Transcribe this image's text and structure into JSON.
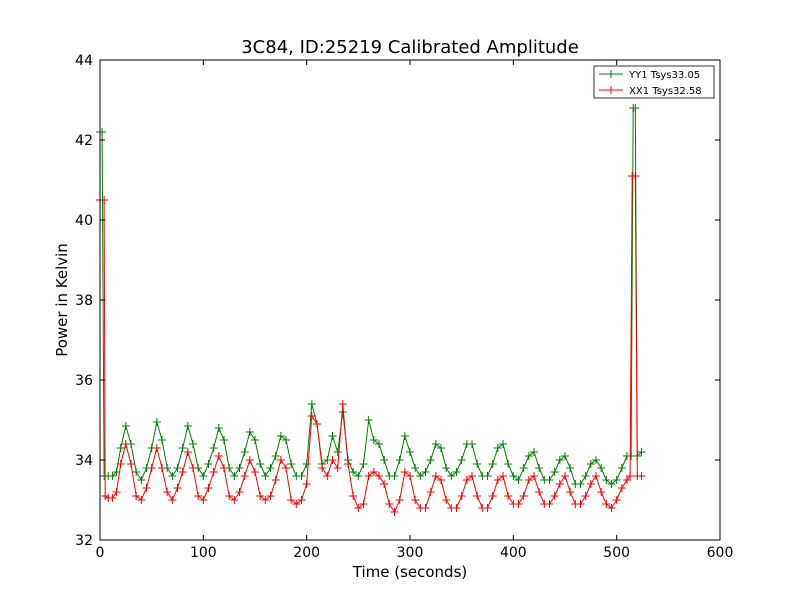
{
  "chart_data": {
    "type": "line",
    "title": "3C84, ID:25219 Calibrated Amplitude",
    "xlabel": "Time (seconds)",
    "ylabel": "Power in Kelvin",
    "xlim": [
      0,
      600
    ],
    "ylim": [
      32,
      44
    ],
    "xticks": [
      0,
      100,
      200,
      300,
      400,
      500,
      600
    ],
    "yticks": [
      32,
      34,
      36,
      38,
      40,
      42,
      44
    ],
    "grid": false,
    "legend_position": "top-right",
    "marker": "+",
    "series": [
      {
        "name": "YY1 Tsys33.05",
        "color": "#008000",
        "points": [
          [
            0,
            42.2
          ],
          [
            2,
            42.2
          ],
          [
            4,
            33.6
          ],
          [
            8,
            33.6
          ],
          [
            12,
            33.6
          ],
          [
            16,
            33.7
          ],
          [
            20,
            34.3
          ],
          [
            25,
            34.85
          ],
          [
            30,
            34.4
          ],
          [
            35,
            33.7
          ],
          [
            40,
            33.5
          ],
          [
            45,
            33.8
          ],
          [
            50,
            34.3
          ],
          [
            55,
            34.95
          ],
          [
            60,
            34.5
          ],
          [
            65,
            33.8
          ],
          [
            70,
            33.6
          ],
          [
            75,
            33.8
          ],
          [
            80,
            34.3
          ],
          [
            85,
            34.85
          ],
          [
            90,
            34.4
          ],
          [
            95,
            33.8
          ],
          [
            100,
            33.6
          ],
          [
            105,
            33.9
          ],
          [
            110,
            34.3
          ],
          [
            115,
            34.8
          ],
          [
            120,
            34.5
          ],
          [
            125,
            33.8
          ],
          [
            130,
            33.6
          ],
          [
            135,
            33.8
          ],
          [
            140,
            34.2
          ],
          [
            145,
            34.7
          ],
          [
            150,
            34.5
          ],
          [
            155,
            33.9
          ],
          [
            160,
            33.6
          ],
          [
            165,
            33.8
          ],
          [
            170,
            34.1
          ],
          [
            175,
            34.6
          ],
          [
            180,
            34.5
          ],
          [
            185,
            33.9
          ],
          [
            190,
            33.6
          ],
          [
            195,
            33.6
          ],
          [
            200,
            33.9
          ],
          [
            205,
            35.4
          ],
          [
            210,
            34.9
          ],
          [
            215,
            33.9
          ],
          [
            220,
            34.0
          ],
          [
            225,
            34.6
          ],
          [
            230,
            34.2
          ],
          [
            235,
            35.2
          ],
          [
            240,
            34.0
          ],
          [
            245,
            33.7
          ],
          [
            250,
            33.6
          ],
          [
            255,
            33.9
          ],
          [
            260,
            35.0
          ],
          [
            265,
            34.5
          ],
          [
            270,
            34.4
          ],
          [
            275,
            34.0
          ],
          [
            280,
            33.6
          ],
          [
            285,
            33.6
          ],
          [
            290,
            34.0
          ],
          [
            295,
            34.6
          ],
          [
            300,
            34.2
          ],
          [
            305,
            33.8
          ],
          [
            310,
            33.6
          ],
          [
            315,
            33.7
          ],
          [
            320,
            34.0
          ],
          [
            325,
            34.4
          ],
          [
            330,
            34.3
          ],
          [
            335,
            33.8
          ],
          [
            340,
            33.6
          ],
          [
            345,
            33.7
          ],
          [
            350,
            34.0
          ],
          [
            355,
            34.4
          ],
          [
            360,
            34.4
          ],
          [
            365,
            33.9
          ],
          [
            370,
            33.6
          ],
          [
            375,
            33.6
          ],
          [
            380,
            33.9
          ],
          [
            385,
            34.3
          ],
          [
            390,
            34.4
          ],
          [
            395,
            33.9
          ],
          [
            400,
            33.6
          ],
          [
            405,
            33.5
          ],
          [
            410,
            33.8
          ],
          [
            415,
            34.1
          ],
          [
            420,
            34.2
          ],
          [
            425,
            33.8
          ],
          [
            430,
            33.5
          ],
          [
            435,
            33.5
          ],
          [
            440,
            33.7
          ],
          [
            445,
            34.0
          ],
          [
            450,
            34.1
          ],
          [
            455,
            33.8
          ],
          [
            460,
            33.4
          ],
          [
            465,
            33.4
          ],
          [
            470,
            33.6
          ],
          [
            475,
            33.9
          ],
          [
            480,
            34.0
          ],
          [
            485,
            33.8
          ],
          [
            490,
            33.5
          ],
          [
            495,
            33.4
          ],
          [
            500,
            33.5
          ],
          [
            505,
            33.8
          ],
          [
            510,
            34.1
          ],
          [
            514,
            34.1
          ],
          [
            516,
            42.8
          ],
          [
            518,
            42.8
          ],
          [
            520,
            34.1
          ],
          [
            524,
            34.2
          ]
        ]
      },
      {
        "name": "XX1 Tsys32.58",
        "color": "#ff0000",
        "points": [
          [
            0,
            40.5
          ],
          [
            4,
            40.5
          ],
          [
            5,
            33.1
          ],
          [
            8,
            33.05
          ],
          [
            12,
            33.05
          ],
          [
            16,
            33.2
          ],
          [
            20,
            33.9
          ],
          [
            25,
            34.4
          ],
          [
            30,
            33.9
          ],
          [
            35,
            33.1
          ],
          [
            40,
            33.0
          ],
          [
            45,
            33.3
          ],
          [
            50,
            33.8
          ],
          [
            55,
            34.3
          ],
          [
            60,
            33.8
          ],
          [
            65,
            33.2
          ],
          [
            70,
            33.0
          ],
          [
            75,
            33.3
          ],
          [
            80,
            33.7
          ],
          [
            85,
            34.2
          ],
          [
            90,
            33.8
          ],
          [
            95,
            33.1
          ],
          [
            100,
            33.0
          ],
          [
            105,
            33.3
          ],
          [
            110,
            33.7
          ],
          [
            115,
            34.1
          ],
          [
            120,
            33.8
          ],
          [
            125,
            33.1
          ],
          [
            130,
            33.0
          ],
          [
            135,
            33.2
          ],
          [
            140,
            33.6
          ],
          [
            145,
            34.0
          ],
          [
            150,
            33.7
          ],
          [
            155,
            33.1
          ],
          [
            160,
            33.0
          ],
          [
            165,
            33.1
          ],
          [
            170,
            33.5
          ],
          [
            175,
            34.0
          ],
          [
            180,
            33.8
          ],
          [
            185,
            33.0
          ],
          [
            190,
            32.9
          ],
          [
            195,
            33.0
          ],
          [
            200,
            33.4
          ],
          [
            205,
            35.1
          ],
          [
            210,
            34.9
          ],
          [
            215,
            33.8
          ],
          [
            220,
            33.6
          ],
          [
            225,
            34.0
          ],
          [
            230,
            33.8
          ],
          [
            235,
            35.4
          ],
          [
            240,
            33.9
          ],
          [
            245,
            33.1
          ],
          [
            250,
            32.8
          ],
          [
            255,
            32.9
          ],
          [
            260,
            33.6
          ],
          [
            265,
            33.7
          ],
          [
            270,
            33.6
          ],
          [
            275,
            33.4
          ],
          [
            280,
            32.9
          ],
          [
            285,
            32.7
          ],
          [
            290,
            33.0
          ],
          [
            295,
            33.7
          ],
          [
            300,
            33.6
          ],
          [
            305,
            33.0
          ],
          [
            310,
            32.8
          ],
          [
            315,
            32.8
          ],
          [
            320,
            33.2
          ],
          [
            325,
            33.6
          ],
          [
            330,
            33.5
          ],
          [
            335,
            33.0
          ],
          [
            340,
            32.8
          ],
          [
            345,
            32.8
          ],
          [
            350,
            33.1
          ],
          [
            355,
            33.5
          ],
          [
            360,
            33.6
          ],
          [
            365,
            33.1
          ],
          [
            370,
            32.8
          ],
          [
            375,
            32.8
          ],
          [
            380,
            33.1
          ],
          [
            385,
            33.5
          ],
          [
            390,
            33.6
          ],
          [
            395,
            33.1
          ],
          [
            400,
            32.9
          ],
          [
            405,
            32.9
          ],
          [
            410,
            33.1
          ],
          [
            415,
            33.5
          ],
          [
            420,
            33.6
          ],
          [
            425,
            33.2
          ],
          [
            430,
            32.9
          ],
          [
            435,
            32.9
          ],
          [
            440,
            33.1
          ],
          [
            445,
            33.4
          ],
          [
            450,
            33.6
          ],
          [
            455,
            33.2
          ],
          [
            460,
            32.9
          ],
          [
            465,
            32.9
          ],
          [
            470,
            33.1
          ],
          [
            475,
            33.4
          ],
          [
            480,
            33.6
          ],
          [
            485,
            33.2
          ],
          [
            490,
            32.9
          ],
          [
            495,
            32.8
          ],
          [
            500,
            33.0
          ],
          [
            505,
            33.3
          ],
          [
            510,
            33.5
          ],
          [
            513,
            33.6
          ],
          [
            515,
            41.1
          ],
          [
            518,
            41.1
          ],
          [
            520,
            33.6
          ],
          [
            524,
            33.6
          ]
        ]
      }
    ]
  }
}
